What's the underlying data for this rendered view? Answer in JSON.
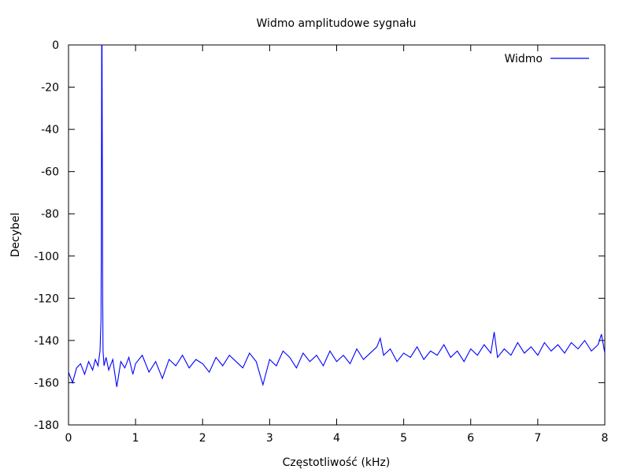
{
  "chart_data": {
    "type": "line",
    "title": "Widmo amplitudowe sygnału",
    "xlabel": "Częstotliwość (kHz)",
    "ylabel": "Decybel",
    "xlim": [
      0,
      8
    ],
    "ylim": [
      -180,
      0
    ],
    "x_ticks": [
      0,
      1,
      2,
      3,
      4,
      5,
      6,
      7,
      8
    ],
    "y_ticks": [
      0,
      -20,
      -40,
      -60,
      -80,
      -100,
      -120,
      -140,
      -160,
      -180
    ],
    "grid": false,
    "legend_position": "top-right",
    "series": [
      {
        "name": "Widmo",
        "color": "#0000ff",
        "points": [
          [
            0.0,
            -155
          ],
          [
            0.06,
            -160
          ],
          [
            0.12,
            -153
          ],
          [
            0.18,
            -151
          ],
          [
            0.24,
            -156
          ],
          [
            0.3,
            -150
          ],
          [
            0.36,
            -154
          ],
          [
            0.4,
            -149
          ],
          [
            0.44,
            -152
          ],
          [
            0.47,
            -145
          ],
          [
            0.485,
            -130
          ],
          [
            0.49,
            -90
          ],
          [
            0.495,
            0
          ],
          [
            0.5,
            0
          ],
          [
            0.505,
            -60
          ],
          [
            0.51,
            -120
          ],
          [
            0.515,
            -145
          ],
          [
            0.53,
            -152
          ],
          [
            0.56,
            -148
          ],
          [
            0.6,
            -154
          ],
          [
            0.66,
            -149
          ],
          [
            0.72,
            -162
          ],
          [
            0.78,
            -150
          ],
          [
            0.84,
            -153
          ],
          [
            0.9,
            -148
          ],
          [
            0.96,
            -156
          ],
          [
            1.0,
            -151
          ],
          [
            1.1,
            -147
          ],
          [
            1.2,
            -155
          ],
          [
            1.3,
            -150
          ],
          [
            1.4,
            -158
          ],
          [
            1.5,
            -149
          ],
          [
            1.6,
            -152
          ],
          [
            1.7,
            -147
          ],
          [
            1.8,
            -153
          ],
          [
            1.9,
            -149
          ],
          [
            2.0,
            -151
          ],
          [
            2.1,
            -155
          ],
          [
            2.2,
            -148
          ],
          [
            2.3,
            -152
          ],
          [
            2.4,
            -147
          ],
          [
            2.5,
            -150
          ],
          [
            2.6,
            -153
          ],
          [
            2.7,
            -146
          ],
          [
            2.8,
            -150
          ],
          [
            2.9,
            -161
          ],
          [
            3.0,
            -149
          ],
          [
            3.1,
            -152
          ],
          [
            3.2,
            -145
          ],
          [
            3.3,
            -148
          ],
          [
            3.4,
            -153
          ],
          [
            3.5,
            -146
          ],
          [
            3.6,
            -150
          ],
          [
            3.7,
            -147
          ],
          [
            3.8,
            -152
          ],
          [
            3.9,
            -145
          ],
          [
            4.0,
            -150
          ],
          [
            4.1,
            -147
          ],
          [
            4.2,
            -151
          ],
          [
            4.3,
            -144
          ],
          [
            4.4,
            -149
          ],
          [
            4.5,
            -146
          ],
          [
            4.6,
            -143
          ],
          [
            4.65,
            -139
          ],
          [
            4.7,
            -147
          ],
          [
            4.8,
            -144
          ],
          [
            4.9,
            -150
          ],
          [
            5.0,
            -146
          ],
          [
            5.1,
            -148
          ],
          [
            5.2,
            -143
          ],
          [
            5.3,
            -149
          ],
          [
            5.4,
            -145
          ],
          [
            5.5,
            -147
          ],
          [
            5.6,
            -142
          ],
          [
            5.7,
            -148
          ],
          [
            5.8,
            -145
          ],
          [
            5.9,
            -150
          ],
          [
            6.0,
            -144
          ],
          [
            6.1,
            -147
          ],
          [
            6.2,
            -142
          ],
          [
            6.3,
            -146
          ],
          [
            6.35,
            -136
          ],
          [
            6.4,
            -148
          ],
          [
            6.5,
            -144
          ],
          [
            6.6,
            -147
          ],
          [
            6.7,
            -141
          ],
          [
            6.8,
            -146
          ],
          [
            6.9,
            -143
          ],
          [
            7.0,
            -147
          ],
          [
            7.1,
            -141
          ],
          [
            7.2,
            -145
          ],
          [
            7.3,
            -142
          ],
          [
            7.4,
            -146
          ],
          [
            7.5,
            -141
          ],
          [
            7.6,
            -144
          ],
          [
            7.7,
            -140
          ],
          [
            7.8,
            -145
          ],
          [
            7.9,
            -142
          ],
          [
            7.95,
            -137
          ],
          [
            8.0,
            -146
          ]
        ]
      }
    ]
  }
}
